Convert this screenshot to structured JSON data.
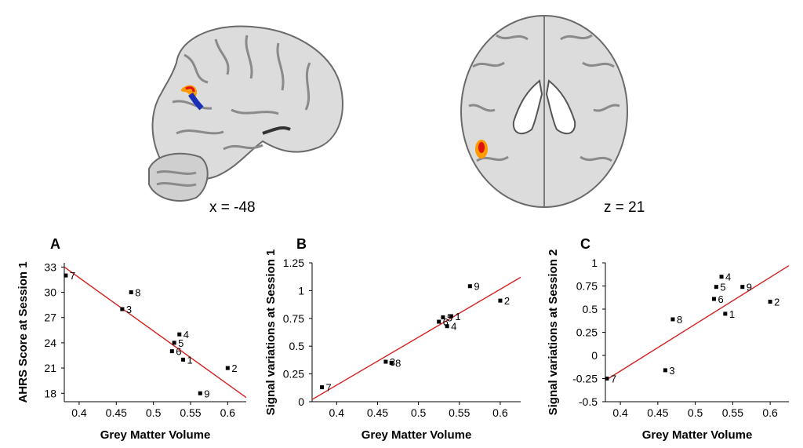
{
  "images": {
    "sagittal": {
      "label": "x = -48"
    },
    "axial": {
      "label": "z = 21"
    }
  },
  "colors": {
    "line": "#d42020",
    "point": "#000000",
    "blob_hot": "#ff9900",
    "blob_red": "#e02000",
    "blob_blue": "#1a2fb8"
  },
  "chart_data": [
    {
      "panel": "A",
      "type": "scatter",
      "xlabel": "Grey Matter Volume",
      "ylabel": "AHRS Score at Session 1",
      "xlim": [
        0.38,
        0.625
      ],
      "ylim": [
        17,
        33.5
      ],
      "xticks": [
        "0.4",
        "0.45",
        "0.5",
        "0.55",
        "0.6"
      ],
      "yticks": [
        "18",
        "21",
        "24",
        "27",
        "30",
        "33"
      ],
      "points": [
        {
          "label": "7",
          "x": 0.382,
          "y": 32
        },
        {
          "label": "8",
          "x": 0.47,
          "y": 30
        },
        {
          "label": "3",
          "x": 0.458,
          "y": 28
        },
        {
          "label": "4",
          "x": 0.535,
          "y": 25
        },
        {
          "label": "5",
          "x": 0.528,
          "y": 24
        },
        {
          "label": "6",
          "x": 0.525,
          "y": 23
        },
        {
          "label": "1",
          "x": 0.54,
          "y": 22
        },
        {
          "label": "2",
          "x": 0.6,
          "y": 21
        },
        {
          "label": "9",
          "x": 0.563,
          "y": 18
        }
      ],
      "fit": [
        [
          0.38,
          33
        ],
        [
          0.625,
          17.5
        ]
      ]
    },
    {
      "panel": "B",
      "type": "scatter",
      "xlabel": "Grey Matter Volume",
      "ylabel": "Signal variations at Session 1",
      "xlim": [
        0.37,
        0.625
      ],
      "ylim": [
        0,
        1.25
      ],
      "xticks": [
        "0.4",
        "0.45",
        "0.5",
        "0.55",
        "0.6"
      ],
      "yticks": [
        "0",
        "0.25",
        "0.5",
        "0.75",
        "1",
        "1.25"
      ],
      "points": [
        {
          "label": "7",
          "x": 0.382,
          "y": 0.13
        },
        {
          "label": "3",
          "x": 0.46,
          "y": 0.36
        },
        {
          "label": "8",
          "x": 0.467,
          "y": 0.35
        },
        {
          "label": "6",
          "x": 0.525,
          "y": 0.72
        },
        {
          "label": "5",
          "x": 0.53,
          "y": 0.76
        },
        {
          "label": "1",
          "x": 0.54,
          "y": 0.77
        },
        {
          "label": "4",
          "x": 0.535,
          "y": 0.68
        },
        {
          "label": "9",
          "x": 0.563,
          "y": 1.04
        },
        {
          "label": "2",
          "x": 0.6,
          "y": 0.91
        }
      ],
      "fit": [
        [
          0.37,
          0.02
        ],
        [
          0.625,
          1.12
        ]
      ]
    },
    {
      "panel": "C",
      "type": "scatter",
      "xlabel": "Grey Matter Volume",
      "ylabel": "Signal variations at Session 2",
      "xlim": [
        0.38,
        0.625
      ],
      "ylim": [
        -0.5,
        1
      ],
      "xticks": [
        "0.4",
        "0.45",
        "0.5",
        "0.55",
        "0.6"
      ],
      "yticks": [
        "-0.5",
        "-0.25",
        "0",
        "0.25",
        "0.5",
        "0.75",
        "1"
      ],
      "points": [
        {
          "label": "7",
          "x": 0.382,
          "y": -0.25
        },
        {
          "label": "3",
          "x": 0.46,
          "y": -0.16
        },
        {
          "label": "8",
          "x": 0.47,
          "y": 0.39
        },
        {
          "label": "6",
          "x": 0.525,
          "y": 0.61
        },
        {
          "label": "5",
          "x": 0.528,
          "y": 0.74
        },
        {
          "label": "4",
          "x": 0.535,
          "y": 0.85
        },
        {
          "label": "9",
          "x": 0.563,
          "y": 0.74
        },
        {
          "label": "1",
          "x": 0.54,
          "y": 0.45
        },
        {
          "label": "2",
          "x": 0.6,
          "y": 0.58
        }
      ],
      "fit": [
        [
          0.38,
          -0.27
        ],
        [
          0.625,
          0.97
        ]
      ]
    }
  ]
}
